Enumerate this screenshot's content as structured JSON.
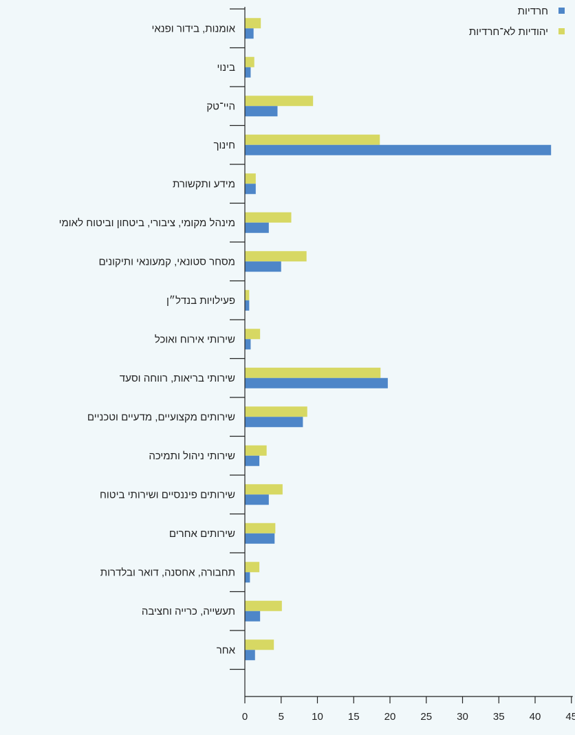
{
  "chart_data": {
    "type": "bar",
    "orientation": "horizontal",
    "categories": [
      "אומנות, בידור ופנאי",
      "בינוי",
      "היי־טק",
      "חינוך",
      "מידע ותקשורת",
      "מינהל מקומי, ציבורי, ביטחון וביטוח לאומי",
      "מסחר סטונאי, קמעונאי ותיקונים",
      "פעילויות בנדל״ן",
      "שירותי אירוח ואוכל",
      "שירותי בריאות, רווחה וסעד",
      "שירותים מקצועיים, מדעיים וטכניים",
      "שירותי ניהול ותמיכה",
      "שירותים פיננסיים ושירותי ביטוח",
      "שירותים אחרים",
      "תחבורה, אחסנה, דואר ובלדרות",
      "תעשייה, כרייה וחציבה",
      "אחר"
    ],
    "series": [
      {
        "name": "חרדיות",
        "color": "#4e86c8",
        "values": [
          1.2,
          0.8,
          4.5,
          42.2,
          1.5,
          3.3,
          5.0,
          0.6,
          0.8,
          19.7,
          8.0,
          2.0,
          3.3,
          4.1,
          0.7,
          2.1,
          1.4
        ]
      },
      {
        "name": "יהודיות לא־חרדיות",
        "color": "#d7d863",
        "values": [
          2.2,
          1.3,
          9.4,
          18.6,
          1.5,
          6.4,
          8.5,
          0.6,
          2.1,
          18.7,
          8.6,
          3.0,
          5.2,
          4.2,
          2.0,
          5.1,
          4.0
        ]
      }
    ],
    "x_ticks": [
      "0",
      "5",
      "10",
      "15",
      "20",
      "25",
      "30",
      "35",
      "40",
      "45"
    ],
    "xlim": [
      0,
      45
    ],
    "grid": false,
    "legend_position": "top-right"
  }
}
